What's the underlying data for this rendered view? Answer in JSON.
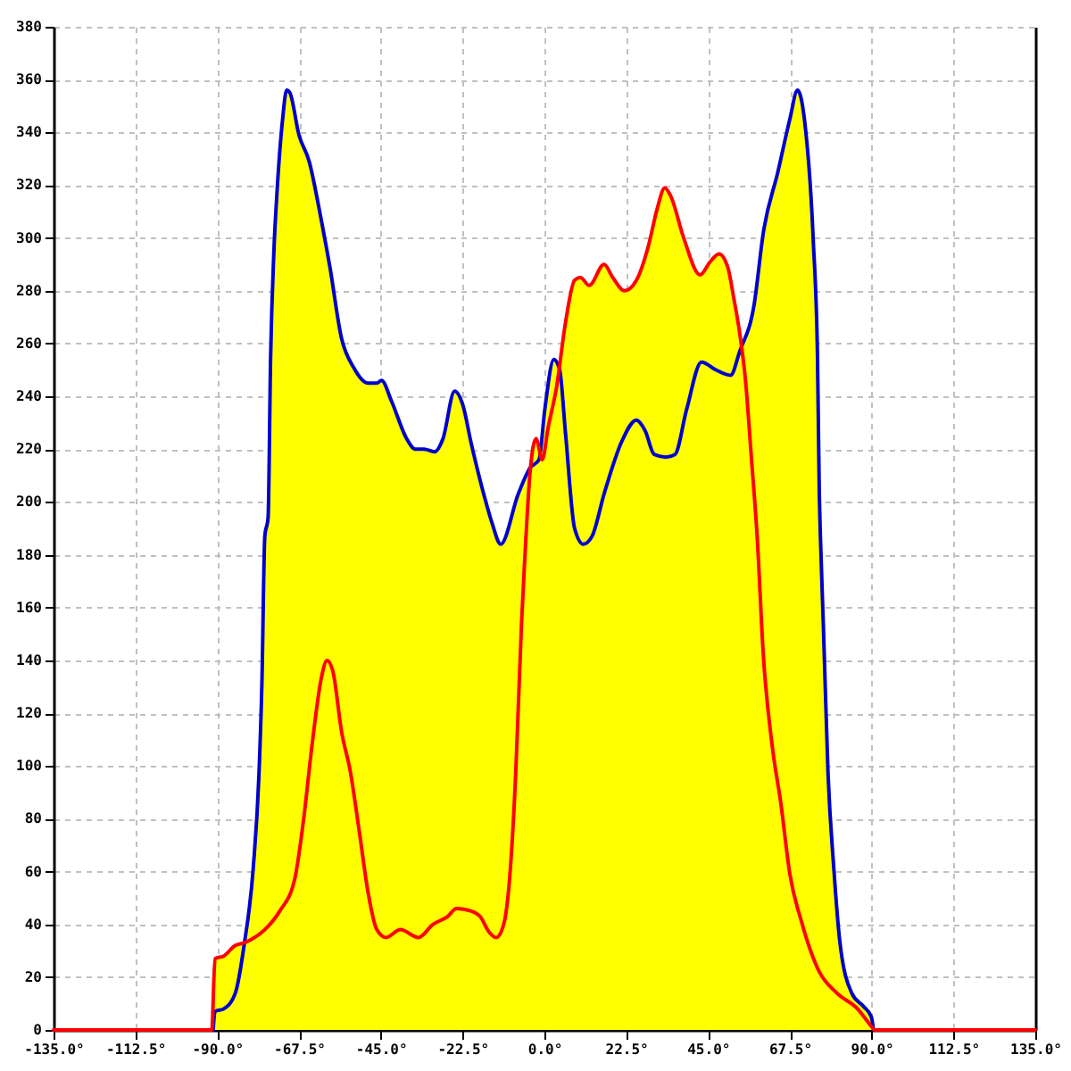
{
  "chart_data": {
    "type": "area",
    "xlim": [
      -135,
      135
    ],
    "xticks": [
      {
        "value": -135,
        "label": "-135.0°"
      },
      {
        "value": -112.5,
        "label": "-112.5°"
      },
      {
        "value": -90,
        "label": "-90.0°"
      },
      {
        "value": -67.5,
        "label": "-67.5°"
      },
      {
        "value": -45,
        "label": "-45.0°"
      },
      {
        "value": -22.5,
        "label": "-22.5°"
      },
      {
        "value": 0,
        "label": "0.0°"
      },
      {
        "value": 22.5,
        "label": "22.5°"
      },
      {
        "value": 45,
        "label": "45.0°"
      },
      {
        "value": 67.5,
        "label": "67.5°"
      },
      {
        "value": 90,
        "label": "90.0°"
      },
      {
        "value": 112.5,
        "label": "112.5°"
      },
      {
        "value": 135,
        "label": "135.0°"
      }
    ],
    "ylim": [
      0,
      380
    ],
    "yticks": [
      0,
      20,
      40,
      60,
      80,
      100,
      120,
      140,
      160,
      180,
      200,
      220,
      240,
      260,
      280,
      300,
      320,
      340,
      360,
      380
    ],
    "grid": true,
    "series": [
      {
        "color": "#ffff00",
        "x": [
          -135,
          -91.5,
          -90.6,
          -88.2,
          -85.0,
          -82.6,
          -82.2,
          -80.1,
          -78.5,
          -77.7,
          -76.9,
          -76.0,
          -75.3,
          -74.4,
          -73.6,
          -72.0,
          -70.9,
          -70.0,
          -67.5,
          -64.7,
          -61.4,
          -59.0,
          -55.8,
          -52.5,
          -48.5,
          -46.1,
          -44.8,
          -42.0,
          -37.9,
          -35.5,
          -33.1,
          -30.2,
          -27.9,
          -24.7,
          -22.5,
          -20.1,
          -16.5,
          -14.4,
          -12.0,
          -7.2,
          -3.9,
          -2.3,
          -1.5,
          -1.2,
          0.1,
          2.6,
          4.0,
          5.8,
          8.3,
          9.9,
          12.3,
          16.4,
          18.8,
          22.0,
          25.3,
          28.6,
          31.0,
          33.1,
          34.7,
          38.3,
          42.8,
          45.6,
          48.0,
          50.4,
          52.1,
          53.7,
          54.1,
          57.7,
          60.2,
          64.2,
          67.5,
          69.6,
          71.5,
          73.9,
          75.1,
          75.6,
          75.9,
          76.7,
          78.0,
          79.6,
          81.2,
          84.5,
          87.7,
          89.9,
          90.5,
          135
        ],
        "values": [
          0,
          0,
          27,
          28,
          32,
          33,
          36,
          61,
          97,
          131,
          187,
          194,
          255,
          295,
          316,
          345,
          356,
          355,
          339,
          329,
          307,
          289,
          262,
          251,
          245,
          245,
          246,
          238,
          224,
          220,
          220,
          219,
          224,
          242,
          237,
          222,
          202,
          192,
          184,
          203,
          213,
          224,
          220,
          219,
          235,
          254,
          251,
          268,
          284,
          285,
          282,
          290,
          285,
          280,
          284,
          297,
          311,
          319,
          316,
          300,
          286,
          291,
          294,
          289,
          277,
          264,
          259,
          275,
          302,
          325,
          345,
          356,
          345,
          300,
          255,
          203,
          187,
          154,
          97,
          61,
          34,
          14,
          9,
          5,
          0,
          0
        ]
      },
      {
        "type": "line",
        "color": "#0000cc",
        "x": [
          -91.1,
          -90.6,
          -88.2,
          -85.0,
          -82.6,
          -80.1,
          -78.5,
          -77.7,
          -76.9,
          -76.0,
          -75.3,
          -74.4,
          -73.6,
          -72.0,
          -70.9,
          -70.0,
          -67.5,
          -64.7,
          -61.4,
          -59.0,
          -55.8,
          -52.5,
          -48.5,
          -46.1,
          -44.8,
          -42.0,
          -37.9,
          -35.5,
          -33.1,
          -30.2,
          -27.9,
          -24.7,
          -22.5,
          -20.1,
          -16.5,
          -14.4,
          -12.0,
          -7.2,
          -3.9,
          -1.5,
          0.1,
          2.6,
          4.2,
          5.8,
          8.3,
          10.7,
          13.1,
          16.4,
          21.3,
          25.3,
          27.7,
          30.2,
          33.4,
          35.9,
          39.1,
          43.2,
          47.2,
          51.2,
          53.7,
          57.7,
          60.2,
          64.2,
          67.5,
          69.6,
          71.5,
          73.9,
          75.1,
          75.6,
          75.9,
          76.7,
          78.0,
          79.6,
          81.2,
          84.5,
          87.7,
          89.9,
          90.5
        ],
        "values": [
          0,
          7,
          8,
          14,
          32,
          61,
          97,
          131,
          187,
          194,
          255,
          295,
          316,
          345,
          356,
          355,
          339,
          329,
          307,
          289,
          262,
          251,
          245,
          245,
          246,
          238,
          224,
          220,
          220,
          219,
          224,
          242,
          237,
          222,
          202,
          192,
          184,
          203,
          213,
          216,
          235,
          254,
          250,
          226,
          190,
          184,
          187,
          203,
          223,
          231,
          227,
          218,
          217,
          218,
          235,
          253,
          250,
          248,
          257,
          275,
          302,
          325,
          345,
          356,
          345,
          300,
          255,
          203,
          187,
          154,
          97,
          61,
          34,
          14,
          9,
          5,
          0
        ]
      },
      {
        "type": "line",
        "color": "#ff0000",
        "x": [
          -135,
          -91.5,
          -90.6,
          -88.2,
          -85.0,
          -82.6,
          -81.0,
          -76.9,
          -72.8,
          -68.7,
          -66.3,
          -63.9,
          -61.4,
          -59.8,
          -58.2,
          -55.8,
          -53.4,
          -50.9,
          -48.5,
          -46.1,
          -43.6,
          -39.6,
          -34.7,
          -30.6,
          -26.6,
          -24.2,
          -20.1,
          -17.7,
          -15.2,
          -13.3,
          -11.2,
          -9.6,
          -7.9,
          -6.3,
          -5.5,
          -3.9,
          -2.3,
          -0.6,
          1.0,
          3.4,
          5.8,
          8.3,
          9.9,
          12.3,
          16.4,
          18.8,
          22.0,
          25.3,
          28.6,
          31.0,
          33.1,
          34.7,
          38.3,
          42.8,
          45.6,
          48.0,
          50.4,
          52.1,
          53.7,
          55.3,
          56.9,
          58.5,
          60.2,
          62.6,
          65.0,
          67.5,
          70.7,
          75.6,
          80.4,
          86.1,
          90.1,
          90.7,
          135
        ],
        "values": [
          0,
          0,
          27,
          28,
          32,
          33,
          34,
          38,
          45,
          57,
          79,
          108,
          133,
          140,
          136,
          113,
          98,
          75,
          52,
          38,
          35,
          38,
          35,
          40,
          43,
          46,
          45,
          43,
          37,
          35,
          40,
          57,
          97,
          154,
          176,
          212,
          224,
          216,
          228,
          244,
          268,
          284,
          285,
          282,
          290,
          285,
          280,
          284,
          297,
          311,
          319,
          316,
          300,
          286,
          291,
          294,
          289,
          277,
          264,
          246,
          217,
          187,
          142,
          108,
          86,
          59,
          41,
          22,
          14,
          8,
          1,
          0,
          0
        ]
      }
    ]
  }
}
